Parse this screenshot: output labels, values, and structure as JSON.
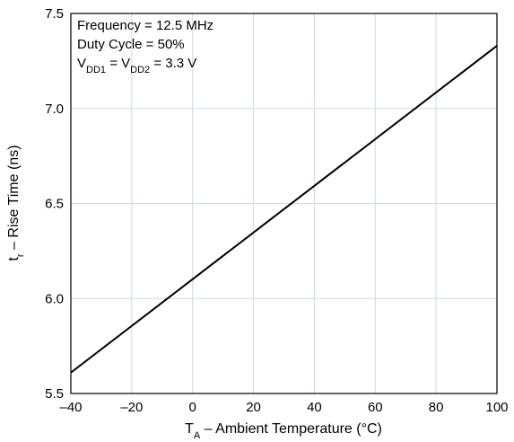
{
  "chart_data": {
    "type": "line",
    "xlabel": {
      "main": "T",
      "sub": "A",
      "rest": " – Ambient Temperature (°C)"
    },
    "ylabel": {
      "main": "t",
      "sub": "r",
      "rest": " – Rise Time (ns)"
    },
    "xlim": [
      -40,
      100
    ],
    "ylim": [
      5.5,
      7.5
    ],
    "x_ticks": [
      "–40",
      "–20",
      "0",
      "20",
      "40",
      "60",
      "80",
      "100"
    ],
    "x_tick_values": [
      -40,
      -20,
      0,
      20,
      40,
      60,
      80,
      100
    ],
    "y_ticks": [
      "5.5",
      "6.0",
      "6.5",
      "7.0",
      "7.5"
    ],
    "y_tick_values": [
      5.5,
      6.0,
      6.5,
      7.0,
      7.5
    ],
    "grid": true,
    "series": [
      {
        "x": [
          -40,
          100
        ],
        "y": [
          5.61,
          7.33
        ]
      }
    ],
    "annotations": {
      "line1": "Frequency = 12.5 MHz",
      "line2": "Duty Cycle = 50%",
      "line3": [
        {
          "text": "V",
          "sub": false
        },
        {
          "text": "DD1",
          "sub": true
        },
        {
          "text": " = V",
          "sub": false
        },
        {
          "text": "DD2",
          "sub": true
        },
        {
          "text": " = 3.3 V",
          "sub": false
        }
      ]
    },
    "colors": {
      "grid": "#c9dbe6",
      "line": "#000000",
      "frame": "#000000"
    }
  }
}
